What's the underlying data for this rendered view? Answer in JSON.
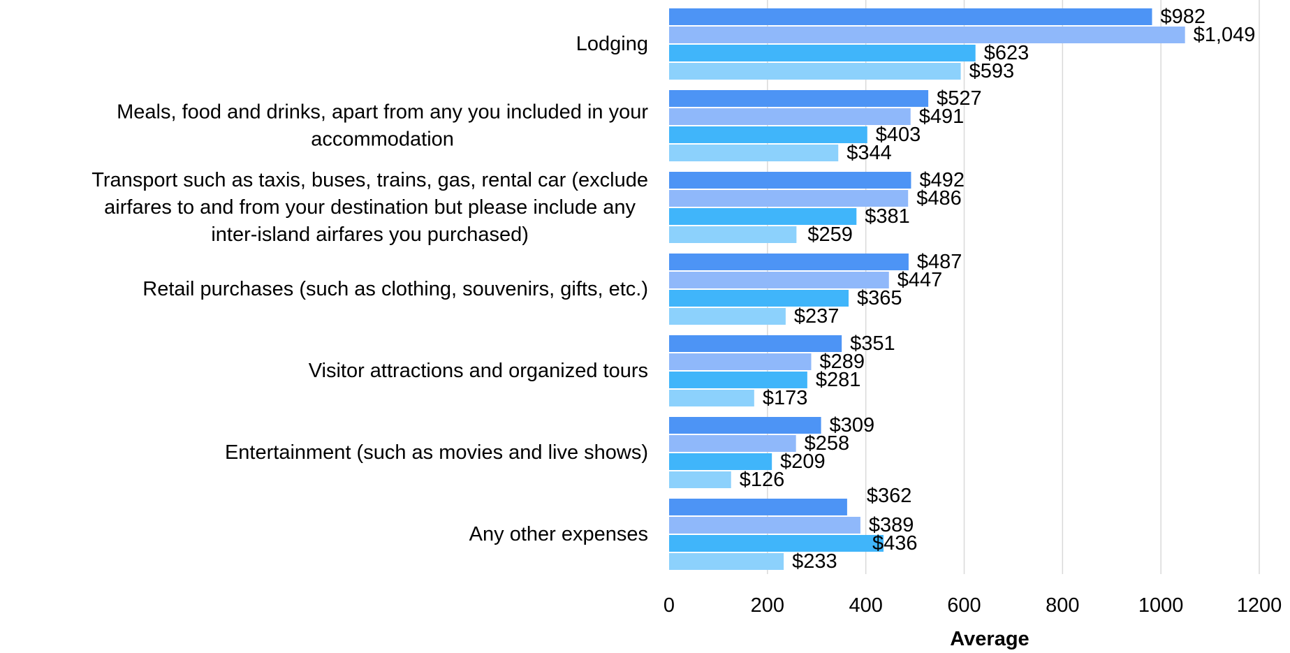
{
  "chart_data": {
    "type": "bar",
    "orientation": "horizontal",
    "categories": [
      [
        "Lodging"
      ],
      [
        "Meals, food and drinks, apart from any you included in your",
        "accommodation"
      ],
      [
        "Transport such as taxis, buses, trains, gas, rental car (exclude",
        "airfares to and from your destination but please include any",
        "inter-island airfares you purchased)"
      ],
      [
        "Retail purchases (such as clothing, souvenirs, gifts, etc.)"
      ],
      [
        "Visitor attractions and organized tours"
      ],
      [
        "Entertainment (such as movies and live shows)"
      ],
      [
        "Any other expenses"
      ]
    ],
    "series": [
      {
        "color": "#4d94f5",
        "values": [
          982,
          527,
          492,
          487,
          351,
          309,
          362
        ],
        "labels": [
          "$982",
          "$527",
          "$492",
          "$487",
          "$351",
          "$309",
          "$362"
        ]
      },
      {
        "color": "#8fb8fa",
        "values": [
          1049,
          491,
          486,
          447,
          289,
          258,
          389
        ],
        "labels": [
          "$1,049",
          "$491",
          "$486",
          "$447",
          "$289",
          "$258",
          "$389"
        ]
      },
      {
        "color": "#40b5fa",
        "values": [
          623,
          403,
          381,
          365,
          281,
          209,
          436
        ],
        "labels": [
          "$623",
          "$403",
          "$381",
          "$365",
          "$281",
          "$209",
          "$436"
        ]
      },
      {
        "color": "#8cd1fc",
        "values": [
          593,
          344,
          259,
          237,
          173,
          126,
          233
        ],
        "labels": [
          "$593",
          "$344",
          "$259",
          "$237",
          "$173",
          "$126",
          "$233"
        ]
      }
    ],
    "xlabel": "Average",
    "ylabel": "",
    "xlim": [
      0,
      1200
    ],
    "xticks": [
      0,
      200,
      400,
      600,
      800,
      1000,
      1200
    ],
    "grid": true,
    "legend": "none"
  }
}
